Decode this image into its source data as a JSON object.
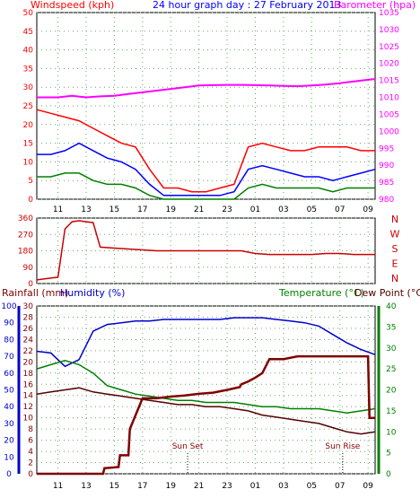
{
  "colors": {
    "wind_speed": "#ff0000",
    "wind_avg": "#0000ff",
    "wind_gust_low": "#008000",
    "barometer": "#ff00ff",
    "wind_dir": "#cc0000",
    "rain": "#800000",
    "humidity": "#0000cc",
    "temperature": "#008000",
    "dewpoint": "#550000",
    "axis_green": "#008000",
    "grid": "#66aa66"
  },
  "header": {
    "windspeed_label": "Windspeed (kph)",
    "title": "24 hour graph day : 27 February 2013",
    "barometer_label": "Barometer (hpa)"
  },
  "panel3_header": {
    "rain_label": "Rainfall (mm)",
    "humidity_label": "Humidity (%)",
    "temp_label": "Temperature (°C)",
    "dew_label": "Dew Point (°C)"
  },
  "annotations": {
    "sunset": "Sun Set",
    "sunrise": "Sun Rise"
  },
  "chart_data": [
    {
      "type": "line",
      "panel": "wind_barometer",
      "x_ticks": [
        "11",
        "13",
        "15",
        "17",
        "19",
        "21",
        "23",
        "01",
        "03",
        "05",
        "07",
        "09"
      ],
      "ylim_left": [
        0,
        50
      ],
      "yticks_left": [
        0,
        5,
        10,
        15,
        20,
        25,
        30,
        35,
        40,
        45,
        50
      ],
      "ylim_right": [
        980,
        1035
      ],
      "yticks_right": [
        980,
        985,
        990,
        995,
        1000,
        1005,
        1010,
        1015,
        1020,
        1025,
        1030,
        1035
      ],
      "series": [
        {
          "role": "gust",
          "axis": "left",
          "color": "#ff0000",
          "x": [
            9.5,
            10.5,
            11.5,
            12.5,
            13.5,
            14.5,
            15.5,
            16.5,
            17.5,
            18.5,
            19.5,
            20.5,
            21.5,
            22.5,
            23.5,
            24.5,
            25.5,
            26.5,
            27.5,
            28.5,
            29.5,
            30.5,
            31.5,
            32.5,
            33.5
          ],
          "y": [
            24,
            23,
            22,
            21,
            19,
            17,
            15,
            14,
            8,
            3,
            3,
            2,
            2,
            3,
            4,
            14,
            15,
            14,
            13,
            13,
            14,
            14,
            14,
            13,
            13
          ]
        },
        {
          "role": "average",
          "axis": "left",
          "color": "#0000ff",
          "x": [
            9.5,
            10.5,
            11.5,
            12.5,
            13.5,
            14.5,
            15.5,
            16.5,
            17.5,
            18.5,
            19.5,
            20.5,
            21.5,
            22.5,
            23.5,
            24.5,
            25.5,
            26.5,
            27.5,
            28.5,
            29.5,
            30.5,
            31.5,
            32.5,
            33.5
          ],
          "y": [
            12,
            12,
            13,
            15,
            13,
            11,
            10,
            8,
            4,
            1,
            1,
            1,
            1,
            1,
            2,
            8,
            9,
            8,
            7,
            6,
            6,
            5,
            6,
            7,
            8
          ]
        },
        {
          "role": "low",
          "axis": "left",
          "color": "#008000",
          "x": [
            9.5,
            10.5,
            11.5,
            12.5,
            13.5,
            14.5,
            15.5,
            16.5,
            17.5,
            18.5,
            19.5,
            20.5,
            21.5,
            22.5,
            23.5,
            24.5,
            25.5,
            26.5,
            27.5,
            28.5,
            29.5,
            30.5,
            31.5,
            32.5,
            33.5
          ],
          "y": [
            6,
            6,
            7,
            7,
            5,
            4,
            4,
            3,
            1,
            0,
            0,
            0,
            0,
            0,
            0,
            3,
            4,
            3,
            3,
            3,
            3,
            2,
            3,
            3,
            3
          ]
        },
        {
          "role": "barometer",
          "axis": "right",
          "color": "#ff00ff",
          "x": [
            9.5,
            11,
            12,
            13,
            14,
            15,
            16,
            17,
            18,
            19,
            20,
            21,
            22,
            23,
            24,
            25,
            26,
            27,
            28,
            29,
            30,
            31,
            32,
            33,
            33.5
          ],
          "y": [
            1010,
            1010,
            1010.5,
            1010,
            1010.3,
            1010.5,
            1011,
            1011.5,
            1012,
            1012.5,
            1013,
            1013.5,
            1013.6,
            1013.7,
            1013.7,
            1013.6,
            1013.5,
            1013.4,
            1013.3,
            1013.5,
            1013.8,
            1014.2,
            1014.7,
            1015.2,
            1015.4
          ]
        }
      ]
    },
    {
      "type": "scatter",
      "panel": "wind_direction",
      "ylim": [
        0,
        360
      ],
      "yticks": [
        0,
        90,
        180,
        270,
        360
      ],
      "compass_labels": [
        "N",
        "W",
        "S",
        "E",
        "N"
      ],
      "series": [
        {
          "role": "direction",
          "color": "#cc0000",
          "x": [
            9.5,
            10,
            10.5,
            11,
            11.5,
            12,
            12.5,
            13,
            13.5,
            14,
            15,
            16,
            17,
            18,
            19,
            20,
            21,
            22,
            23,
            24,
            25,
            26,
            27,
            28,
            29,
            30,
            31,
            32,
            33,
            33.5
          ],
          "y": [
            20,
            25,
            30,
            35,
            300,
            340,
            345,
            340,
            335,
            200,
            195,
            190,
            185,
            180,
            180,
            180,
            180,
            180,
            180,
            180,
            165,
            160,
            160,
            160,
            160,
            165,
            165,
            160,
            160,
            160
          ]
        }
      ]
    },
    {
      "type": "line",
      "panel": "temp_hum_rain",
      "ylim_humidity": [
        0,
        100
      ],
      "yticks_humidity": [
        0,
        10,
        20,
        30,
        40,
        50,
        60,
        70,
        80,
        90,
        100
      ],
      "ylim_rain": [
        0,
        30
      ],
      "yticks_rain": [
        0,
        2,
        4,
        6,
        8,
        10,
        12,
        14,
        16,
        18,
        20,
        22,
        24,
        26,
        28,
        30
      ],
      "ylim_temp": [
        0,
        40
      ],
      "yticks_temp": [
        0,
        5,
        10,
        15,
        20,
        25,
        30,
        35,
        40
      ],
      "series": [
        {
          "role": "humidity",
          "axis": "humidity",
          "color": "#0000cc",
          "x": [
            9.5,
            10.5,
            11.5,
            12.5,
            13.5,
            14.5,
            15.5,
            16.5,
            17.5,
            18.5,
            19.5,
            20.5,
            21.5,
            22.5,
            23.5,
            24.5,
            25.5,
            26.5,
            27.5,
            28.5,
            29.5,
            30.5,
            31.5,
            32.5,
            33.5
          ],
          "y": [
            73,
            72,
            64,
            68,
            85,
            89,
            90,
            91,
            91,
            92,
            92,
            92,
            92,
            92,
            93,
            93,
            93,
            92,
            91,
            90,
            88,
            83,
            78,
            74,
            71
          ]
        },
        {
          "role": "temperature",
          "axis": "temp",
          "color": "#008000",
          "x": [
            9.5,
            10.5,
            11.5,
            12.5,
            13.5,
            14.5,
            15.5,
            16.5,
            17.5,
            18.5,
            19.5,
            20.5,
            21.5,
            22.5,
            23.5,
            24.5,
            25.5,
            26.5,
            27.5,
            28.5,
            29.5,
            30.5,
            31.5,
            32.5,
            33.5
          ],
          "y": [
            25,
            26,
            27,
            26,
            24,
            21,
            20,
            19,
            18.5,
            18,
            17.5,
            17.5,
            17,
            17,
            17,
            16.5,
            16,
            16,
            15.5,
            15.5,
            15.5,
            15,
            14.5,
            15,
            15.5
          ]
        },
        {
          "role": "dewpoint",
          "axis": "temp",
          "color": "#550000",
          "x": [
            9.5,
            10.5,
            11.5,
            12.5,
            13.5,
            14.5,
            15.5,
            16.5,
            17.5,
            18.5,
            19.5,
            20.5,
            21.5,
            22.5,
            23.5,
            24.5,
            25.5,
            26.5,
            27.5,
            28.5,
            29.5,
            30.5,
            31.5,
            32.5,
            33.5
          ],
          "y": [
            19,
            19.5,
            20,
            20.5,
            19.5,
            19,
            18.5,
            18,
            17.5,
            17,
            16.5,
            16.5,
            16,
            16,
            15.5,
            15,
            14,
            13.5,
            13,
            12.5,
            12,
            11,
            10,
            9.5,
            10
          ]
        },
        {
          "role": "rain",
          "axis": "rain",
          "color": "#800000",
          "x": [
            9.5,
            14.2,
            14.3,
            15.3,
            15.4,
            16.0,
            16.1,
            17.0,
            18,
            19,
            20,
            21,
            22,
            23,
            23.9,
            24,
            24.5,
            25,
            25.5,
            26,
            27,
            28,
            29,
            30,
            31,
            32,
            33,
            33.1,
            33.5
          ],
          "y": [
            0,
            0,
            1,
            1.2,
            3.3,
            3.3,
            8,
            13.5,
            13.5,
            13.8,
            14.0,
            14.3,
            14.5,
            15.0,
            15.5,
            16.0,
            16.5,
            17.2,
            18.0,
            20.5,
            20.5,
            21.0,
            21.0,
            21.0,
            21.0,
            21.0,
            21.0,
            10.0,
            10.0
          ]
        }
      ]
    }
  ]
}
